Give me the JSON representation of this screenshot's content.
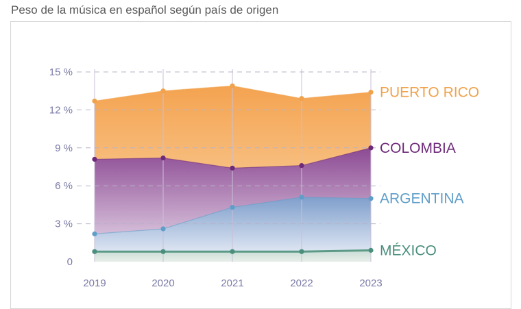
{
  "title": "Peso de la música en español según país de origen",
  "chart_data": {
    "type": "area",
    "title": "Peso de la música en español según país de origen",
    "x": [
      "2019",
      "2020",
      "2021",
      "2022",
      "2023"
    ],
    "ylim": [
      0,
      15
    ],
    "yticks": [
      0,
      3,
      6,
      9,
      12,
      15
    ],
    "ytick_labels": [
      "0",
      "3 %",
      "6 %",
      "9 %",
      "12 %",
      "15 %"
    ],
    "series": [
      {
        "name": "MÉXICO",
        "color": "#4a8f7c",
        "values": [
          0.8,
          0.8,
          0.8,
          0.8,
          0.9
        ]
      },
      {
        "name": "ARGENTINA",
        "color": "#5f9ec9",
        "values": [
          2.2,
          2.6,
          4.3,
          5.1,
          5.0
        ]
      },
      {
        "name": "COLOMBIA",
        "color": "#6e2a7a",
        "values": [
          8.1,
          8.2,
          7.4,
          7.6,
          9.0
        ]
      },
      {
        "name": "PUERTO RICO",
        "color": "#f0a24c",
        "values": [
          12.7,
          13.5,
          13.9,
          12.9,
          13.4
        ]
      }
    ]
  }
}
